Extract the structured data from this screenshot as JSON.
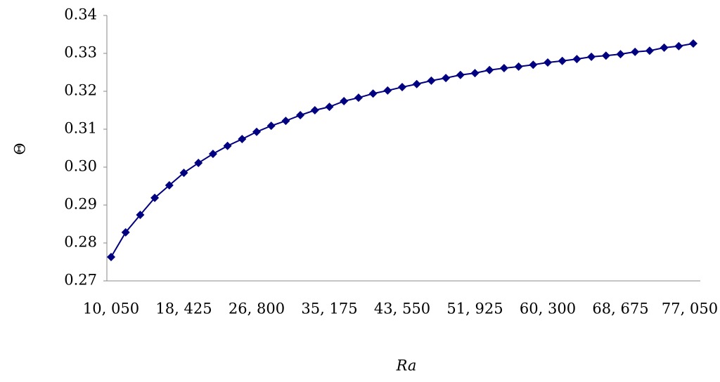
{
  "chart_data": {
    "type": "line",
    "x_label": "Ra",
    "y_label": "Θ",
    "categories": [
      "10, 050",
      null,
      null,
      null,
      null,
      "18, 425",
      null,
      null,
      null,
      null,
      "26, 800",
      null,
      null,
      null,
      null,
      "35, 175",
      null,
      null,
      null,
      null,
      "43, 550",
      null,
      null,
      null,
      null,
      "51, 925",
      null,
      null,
      null,
      null,
      "60, 300",
      null,
      null,
      null,
      null,
      "68, 675",
      null,
      null,
      null,
      null,
      "77, 050"
    ],
    "series": [
      {
        "color": "#000080",
        "values": [
          0.2763,
          0.2828,
          0.2874,
          0.2919,
          0.2952,
          0.2985,
          0.3011,
          0.3035,
          0.3056,
          0.3074,
          0.3093,
          0.3109,
          0.3122,
          0.3137,
          0.315,
          0.3159,
          0.3174,
          0.3183,
          0.3194,
          0.3202,
          0.3211,
          0.3219,
          0.3228,
          0.3235,
          0.3243,
          0.3248,
          0.3256,
          0.3261,
          0.3265,
          0.327,
          0.3276,
          0.328,
          0.3285,
          0.3291,
          0.3294,
          0.3298,
          0.3304,
          0.3307,
          0.3315,
          0.3319,
          0.3326
        ]
      }
    ],
    "ylim": [
      0.27,
      0.34
    ],
    "yticks": [
      0.27,
      0.28,
      0.29,
      {
        "value": 0.3,
        "label": "0.30"
      },
      0.31,
      0.32,
      0.33,
      0.34
    ],
    "grid": false
  }
}
